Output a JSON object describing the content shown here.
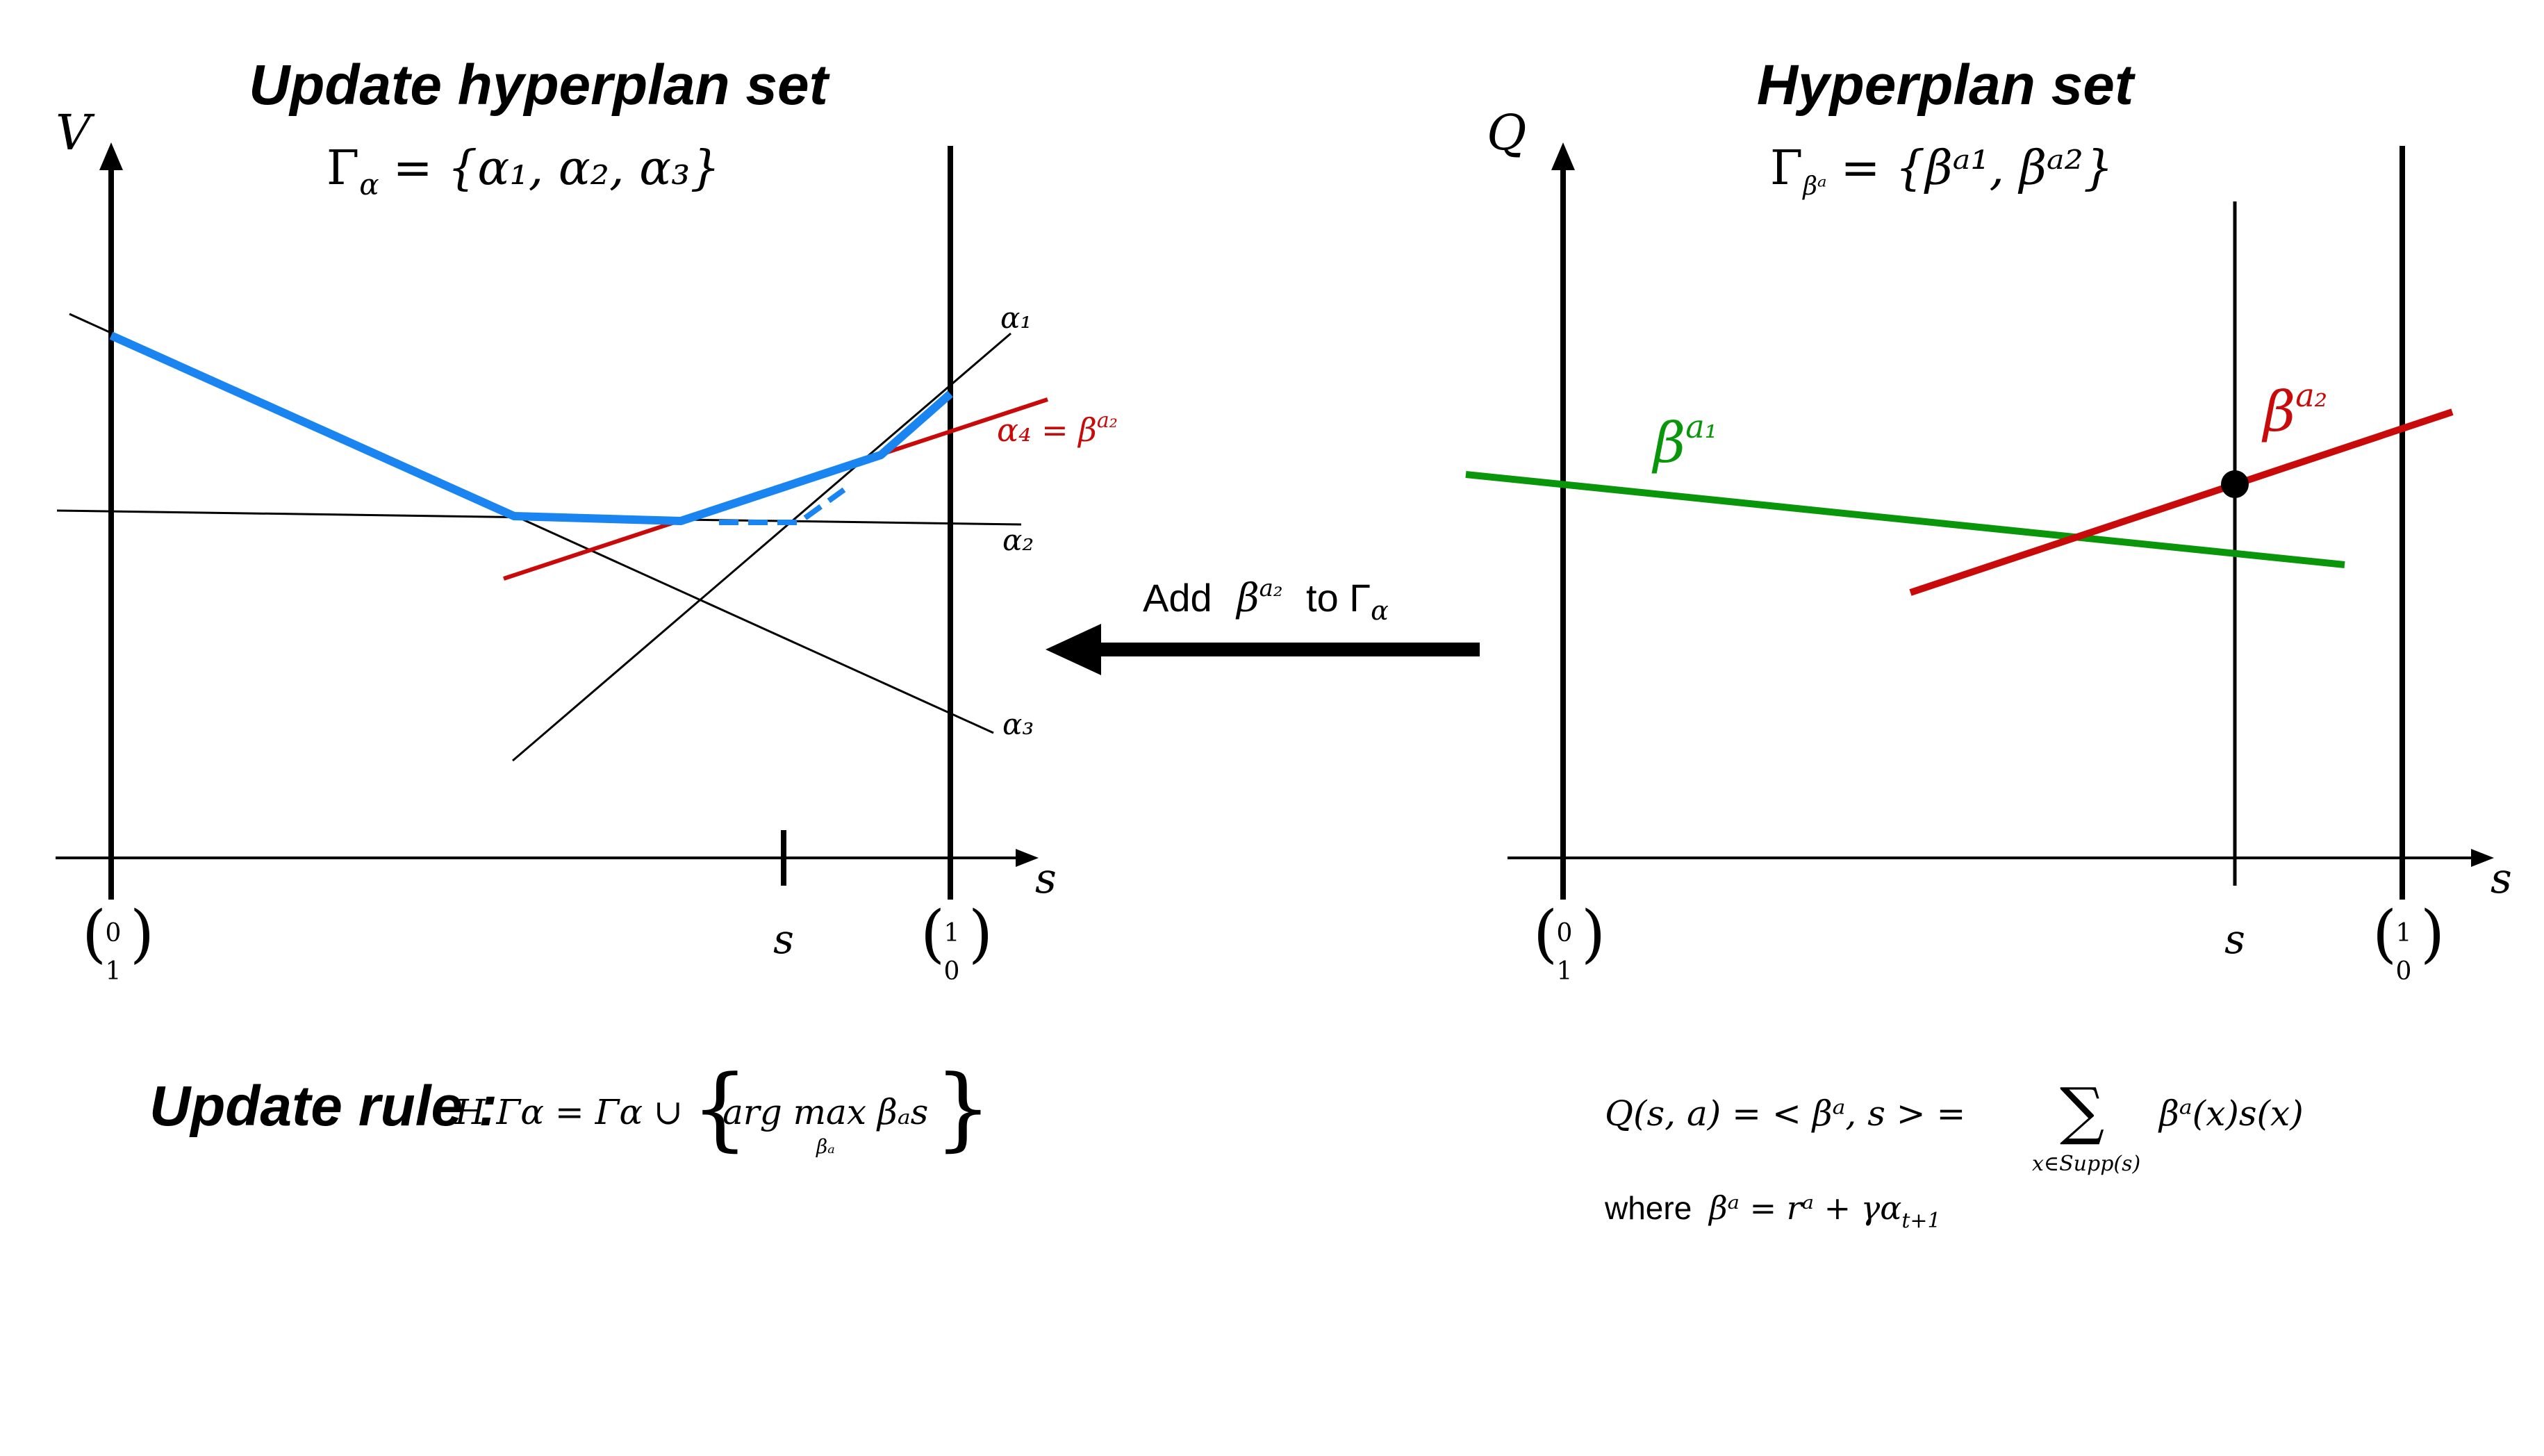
{
  "left_panel": {
    "title": "Update hyperplan set",
    "y_axis_label": "V",
    "x_axis_label": "s",
    "set_gamma": "Γ",
    "set_subscript": "α",
    "set_members": "= {α₁, α₂, α₃}",
    "x_tick_left_top": "0",
    "x_tick_left_bottom": "1",
    "x_tick_s": "s",
    "x_tick_right_top": "1",
    "x_tick_right_bottom": "0",
    "line_labels": {
      "alpha1": "α₁",
      "alpha2": "α₂",
      "alpha3": "α₃",
      "alpha4": "α₄ = β",
      "alpha4_sup": "a₂"
    },
    "update_rule_label": "Update rule :",
    "update_rule_formula": "H Γα = Γα ∪",
    "update_rule_argmax": "arg max βₐs",
    "update_rule_sub": "βₐ"
  },
  "arrow": {
    "text_add": "Add",
    "beta": "β",
    "beta_sup": "a₂",
    "text_to": "to Γ",
    "to_sub": "α"
  },
  "right_panel": {
    "title": "Hyperplan set",
    "y_axis_label": "Q",
    "x_axis_label": "s",
    "set_gamma": "Γ",
    "set_subscript": "βᵃ",
    "set_members": "= {βᵃ¹, βᵃ²}",
    "x_tick_left_top": "0",
    "x_tick_left_bottom": "1",
    "x_tick_s": "s",
    "x_tick_right_top": "1",
    "x_tick_right_bottom": "0",
    "beta1_label": "β",
    "beta1_sup": "a₁",
    "beta2_label": "β",
    "beta2_sup": "a₂",
    "q_formula": "Q(s, a) =  < βᵃ, s >  =",
    "q_sum": "∑",
    "q_sum_sub": "x∈Supp(s)",
    "q_formula_rhs": "βᵃ(x)s(x)",
    "where_text": "where",
    "where_formula": "βᵃ = rᵃ + γα",
    "where_sub": "t+1"
  },
  "colors": {
    "axis": "#000000",
    "upper_envelope": "#1a84f0",
    "alpha4": "#c80a0a",
    "beta1": "#0a960a",
    "beta2": "#c80a0a"
  }
}
